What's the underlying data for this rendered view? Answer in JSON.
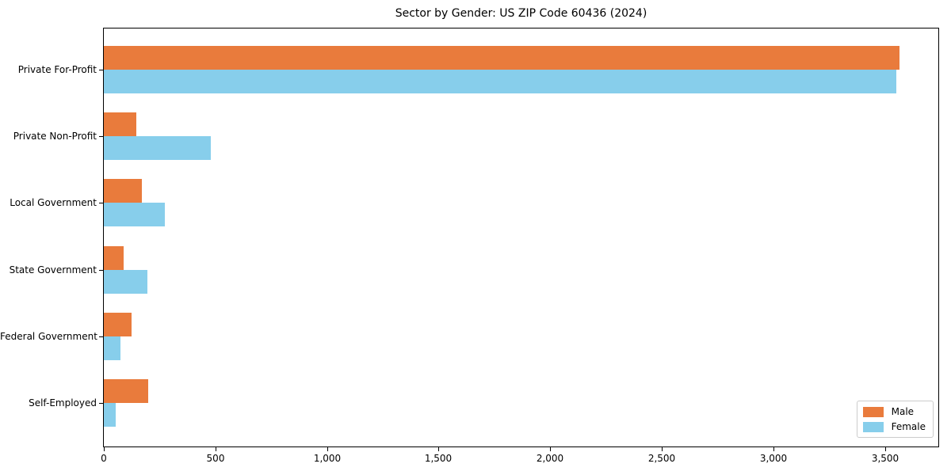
{
  "chart_data": {
    "type": "bar",
    "orientation": "horizontal",
    "title": "Sector by Gender: US ZIP Code 60436 (2024)",
    "categories": [
      "Private For-Profit",
      "Private Non-Profit",
      "Local Government",
      "State Government",
      "Federal Government",
      "Self-Employed"
    ],
    "series": [
      {
        "name": "Male",
        "color": "#E97B3C",
        "values": [
          3565,
          145,
          170,
          90,
          125,
          200
        ]
      },
      {
        "name": "Female",
        "color": "#87CEEB",
        "values": [
          3550,
          480,
          275,
          195,
          75,
          55
        ]
      }
    ],
    "xlabel": "",
    "ylabel": "",
    "xlim": [
      0,
      3743
    ],
    "xticks": [
      0,
      500,
      1000,
      1500,
      2000,
      2500,
      3000,
      3500
    ],
    "xtick_labels": [
      "0",
      "500",
      "1,000",
      "1,500",
      "2,000",
      "2,500",
      "3,000",
      "3,500"
    ],
    "legend_position": "lower right",
    "grid": false,
    "background_color": "#ffffff",
    "spine_color": "#000000"
  }
}
